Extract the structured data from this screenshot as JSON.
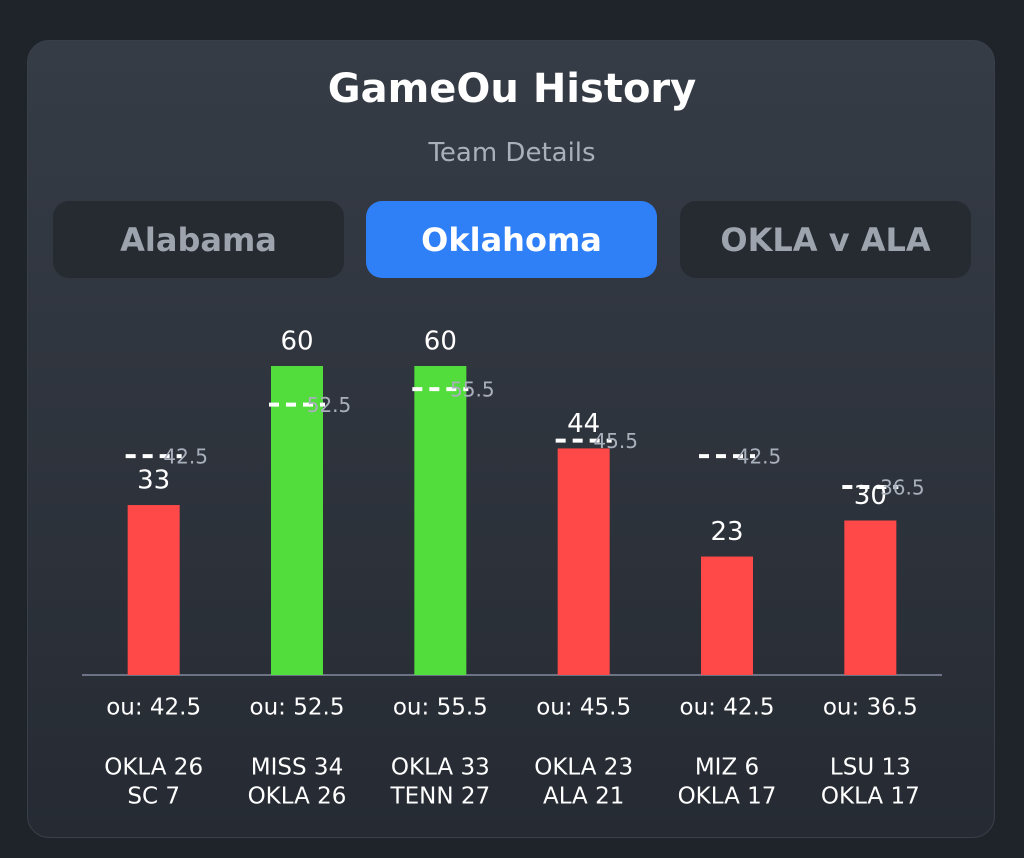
{
  "header": {
    "title": "GameOu History",
    "subtitle": "Team Details"
  },
  "tabs": [
    "Alabama",
    "Oklahoma",
    "OKLA v ALA"
  ],
  "chart_data": {
    "type": "bar",
    "values": [
      33,
      60,
      60,
      44,
      23,
      30
    ],
    "colors": [
      "#ff4848",
      "#52dd3c",
      "#52dd3c",
      "#ff4848",
      "#ff4848",
      "#ff4848"
    ],
    "ou_lines": [
      42.5,
      52.5,
      55.5,
      45.5,
      42.5,
      36.5
    ],
    "ou_labels": [
      "ou: 42.5",
      "ou: 52.5",
      "ou: 55.5",
      "ou: 45.5",
      "ou: 42.5",
      "ou: 36.5"
    ],
    "scores": [
      [
        "OKLA 26",
        "SC 7"
      ],
      [
        "MISS 34",
        "OKLA 26"
      ],
      [
        "OKLA 33",
        "TENN 27"
      ],
      [
        "OKLA 23",
        "ALA 21"
      ],
      [
        "MIZ 6",
        "OKLA 17"
      ],
      [
        "LSU 13",
        "OKLA 17"
      ]
    ],
    "ylim": [
      0,
      60
    ]
  }
}
